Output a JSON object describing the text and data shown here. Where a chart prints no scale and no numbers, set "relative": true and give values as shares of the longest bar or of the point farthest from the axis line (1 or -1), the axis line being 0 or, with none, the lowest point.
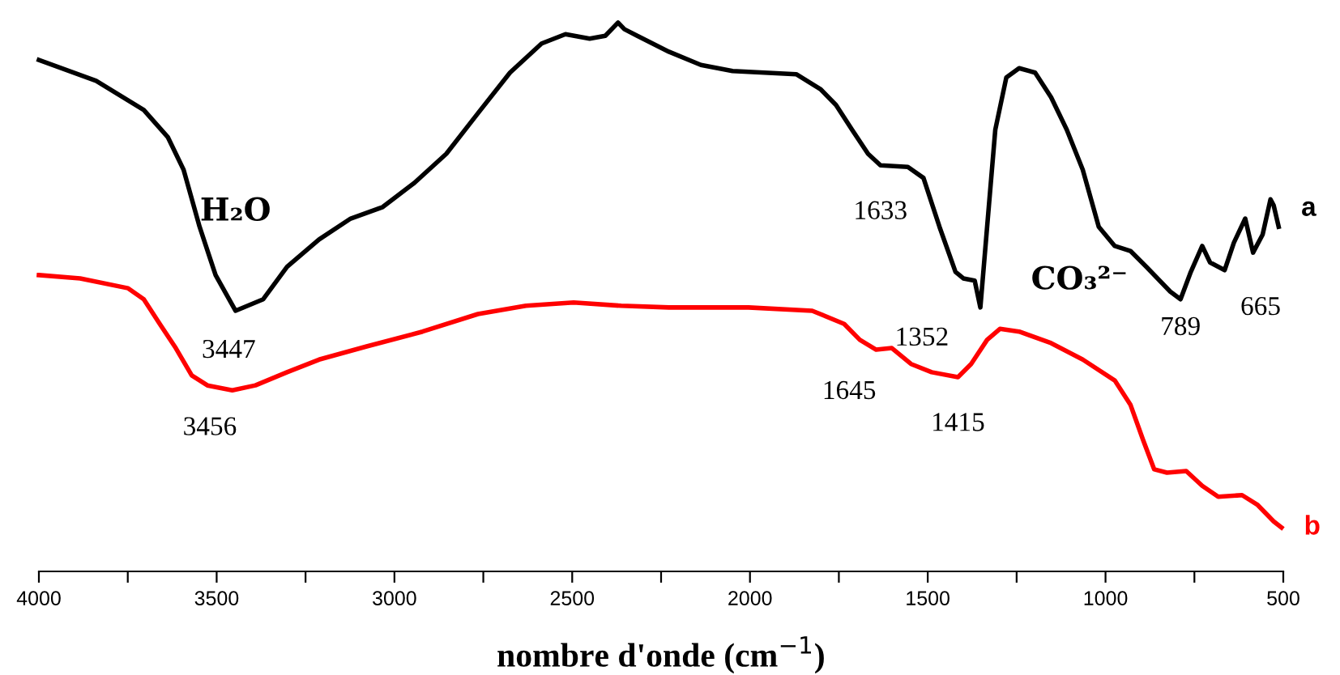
{
  "chart_data": {
    "type": "line",
    "relative": true,
    "xlabel": "nombre d'onde (cm$^{−1}$)",
    "xlim": [
      4000,
      500
    ],
    "xticks": [
      4000,
      {
        "value": 3750,
        "label": null
      },
      3500,
      {
        "value": 3250,
        "label": null
      },
      3000,
      {
        "value": 2750,
        "label": null
      },
      2500,
      {
        "value": 2250,
        "label": null
      },
      2000,
      {
        "value": 1750,
        "label": null
      },
      1500,
      {
        "value": 1250,
        "label": null
      },
      1000,
      {
        "value": 750,
        "label": null
      },
      500
    ],
    "tick_labels": "x",
    "grid": false,
    "legend": false,
    "marker": "none",
    "line_style": "solid",
    "series": [
      {
        "name": "a",
        "color": "#000000",
        "x": [
          4000,
          3839,
          3705,
          3637,
          3593,
          3548,
          3503,
          3447,
          3369,
          3302,
          3212,
          3123,
          3033,
          2944,
          2854,
          2765,
          2675,
          2586,
          2519,
          2451,
          2407,
          2371,
          2353,
          2317,
          2228,
          2138,
          2049,
          1870,
          1802,
          1758,
          1713,
          1668,
          1633,
          1556,
          1512,
          1467,
          1422,
          1400,
          1368,
          1352,
          1333,
          1310,
          1279,
          1243,
          1198,
          1153,
          1109,
          1064,
          1019,
          974,
          930,
          885,
          818,
          789,
          760,
          728,
          706,
          665,
          639,
          607,
          585,
          558,
          536,
          527,
          513
        ],
        "values": [
          0.932,
          0.894,
          0.841,
          0.791,
          0.732,
          0.628,
          0.54,
          0.475,
          0.496,
          0.555,
          0.605,
          0.643,
          0.664,
          0.708,
          0.761,
          0.835,
          0.909,
          0.962,
          0.979,
          0.971,
          0.976,
          1.0,
          0.988,
          0.976,
          0.947,
          0.923,
          0.912,
          0.906,
          0.879,
          0.85,
          0.805,
          0.761,
          0.74,
          0.737,
          0.717,
          0.628,
          0.546,
          0.534,
          0.53,
          0.481,
          0.628,
          0.805,
          0.9,
          0.917,
          0.909,
          0.864,
          0.805,
          0.732,
          0.628,
          0.593,
          0.584,
          0.555,
          0.51,
          0.496,
          0.546,
          0.593,
          0.563,
          0.549,
          0.599,
          0.643,
          0.581,
          0.614,
          0.678,
          0.667,
          0.628
        ]
      },
      {
        "name": "b",
        "color": "#ff0000",
        "x": [
          4000,
          3884,
          3749,
          3705,
          3660,
          3615,
          3570,
          3526,
          3456,
          3391,
          3302,
          3212,
          3078,
          2921,
          2765,
          2630,
          2496,
          2362,
          2228,
          2004,
          1825,
          1735,
          1691,
          1645,
          1601,
          1547,
          1489,
          1415,
          1378,
          1333,
          1297,
          1243,
          1153,
          1064,
          974,
          930,
          894,
          863,
          827,
          773,
          728,
          683,
          616,
          572,
          527,
          505
        ],
        "values": [
          0.54,
          0.534,
          0.516,
          0.496,
          0.451,
          0.407,
          0.357,
          0.339,
          0.33,
          0.339,
          0.363,
          0.386,
          0.41,
          0.437,
          0.469,
          0.484,
          0.49,
          0.484,
          0.481,
          0.481,
          0.475,
          0.451,
          0.422,
          0.404,
          0.407,
          0.378,
          0.363,
          0.354,
          0.378,
          0.422,
          0.442,
          0.437,
          0.416,
          0.386,
          0.348,
          0.304,
          0.239,
          0.186,
          0.18,
          0.183,
          0.156,
          0.136,
          0.139,
          0.121,
          0.091,
          0.08
        ]
      }
    ],
    "annotations": [
      {
        "text": "H₂O",
        "x": 3447,
        "y": 0.475
      },
      {
        "text": "3447",
        "x": 3447,
        "y": 0.475
      },
      {
        "text": "1633",
        "x": 1633,
        "y": 0.74
      },
      {
        "text": "CO₃²⁻",
        "x": 1352,
        "y": 0.481
      },
      {
        "text": "1352",
        "x": 1352,
        "y": 0.481
      },
      {
        "text": "789",
        "x": 789,
        "y": 0.496
      },
      {
        "text": "665",
        "x": 665,
        "y": 0.549
      },
      {
        "text": "3456",
        "x": 3456,
        "y": 0.33
      },
      {
        "text": "1645",
        "x": 1645,
        "y": 0.404
      },
      {
        "text": "1415",
        "x": 1415,
        "y": 0.354
      }
    ]
  }
}
